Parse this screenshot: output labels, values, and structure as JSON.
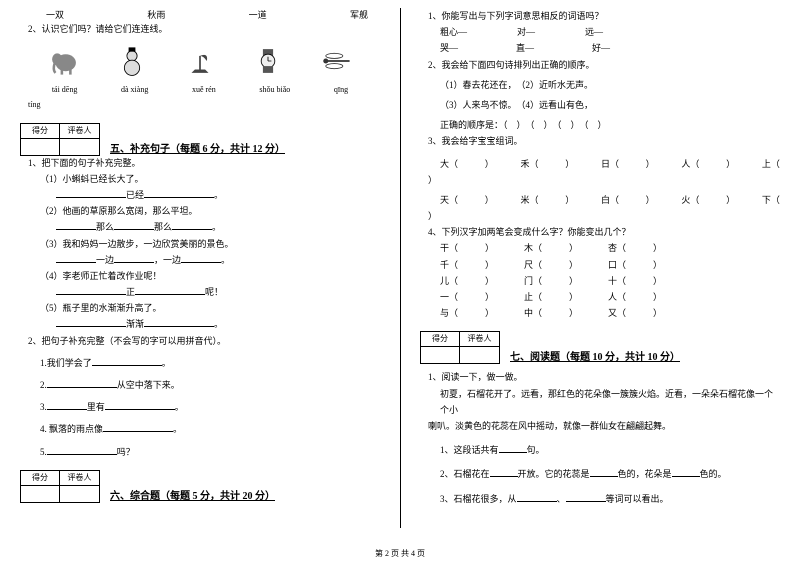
{
  "left": {
    "row_words": [
      "一双",
      "秋雨",
      "一道",
      "军舰"
    ],
    "q2": "2、认识它们吗？请给它们连连线。",
    "pinyin": [
      "tái dēng",
      "dà xiàng",
      "xuě rén",
      "shǒu biǎo",
      "qīng"
    ],
    "pinyin2": "tíng",
    "score_labels": [
      "得分",
      "评卷人"
    ],
    "section5": "五、补充句子（每题 6 分，共计 12 分）",
    "q5_1": "1、把下面的句子补充完整。",
    "q5_1_1": "（1）小蝌蚪已经长大了。",
    "q5_1_2a": "已经",
    "q5_1_2b": "。",
    "q5_1_3": "（2）他画的草原那么宽阔，那么平坦。",
    "q5_1_4a": "那么",
    "q5_1_4b": "那么",
    "q5_1_4c": "。",
    "q5_1_5": "（3）我和妈妈一边散步，一边欣赏美丽的景色。",
    "q5_1_6a": "一边",
    "q5_1_6b": "，一边",
    "q5_1_6c": "。",
    "q5_1_7": "（4）李老师正忙着改作业呢！",
    "q5_1_8a": "正",
    "q5_1_8b": "呢！",
    "q5_1_9": "（5）瓶子里的水渐渐升高了。",
    "q5_1_10a": "渐渐",
    "q5_1_10b": "。",
    "q5_2": "2、把句子补充完整（不会写的字可以用拼音代）。",
    "q5_2_1": "1.我们学会了",
    "q5_2_2": "2.",
    "q5_2_2b": "从空中落下来。",
    "q5_2_3": "3.",
    "q5_2_3b": "里有",
    "q5_2_4": "4. 飘落的雨点像",
    "q5_2_5": "5.",
    "q5_2_5b": "吗？",
    "section6": "六、综合题（每题 5 分，共计 20 分）"
  },
  "right": {
    "q1": "1、你能写出与下列字词意思相反的词语吗？",
    "q1_words": [
      "粗心—",
      "对—",
      "远—"
    ],
    "q1_words2": [
      "哭—",
      "直—",
      "好—"
    ],
    "q2": "2、我会给下面四句诗排列出正确的顺序。",
    "q2_1": "（1）春去花还在，",
    "q2_2": "（2）近听水无声。",
    "q2_3": "（3）人来鸟不惊。",
    "q2_4": "（4）远看山有色，",
    "q2_ans": "正确的顺序是：（　）　（　）　（　）　（　）",
    "q3": "3、我会给字宝宝组词。",
    "q3_row1": [
      "大（",
      "禾（",
      "日（",
      "人（",
      "上（"
    ],
    "q3_row2": [
      "天（",
      "米（",
      "白（",
      "火（",
      "下（"
    ],
    "q4": "4、下列汉字加两笔会变成什么字？你能变出几个？",
    "q4_rows": [
      [
        "干（",
        "木（",
        "杏（"
      ],
      [
        "千（",
        "尺（",
        "口（"
      ],
      [
        "儿（",
        "门（",
        "十（"
      ],
      [
        "一（",
        "止（",
        "人（"
      ],
      [
        "与（",
        "中（",
        "又（"
      ]
    ],
    "section7": "七、阅读题（每题 10 分，共计 10 分）",
    "q7_1": "1、阅读一下，做一做。",
    "q7_text1": "初夏，石榴花开了。远看，那红色的花朵像一簇簇火焰。近看，一朵朵石榴花像一个个小",
    "q7_text2": "喇叭。淡黄色的花蕊在风中摇动，就像一群仙女在翩翩起舞。",
    "q7_q1a": "1、这段话共有",
    "q7_q1b": "句。",
    "q7_q2a": "2、石榴花在",
    "q7_q2b": "开放。它的花蕊是",
    "q7_q2c": "色的，花朵是",
    "q7_q2d": "色的。",
    "q7_q3a": "3、石榴花很多，从",
    "q7_q3b": "、",
    "q7_q3c": "等词可以看出。"
  },
  "footer": "第 2 页 共 4 页"
}
